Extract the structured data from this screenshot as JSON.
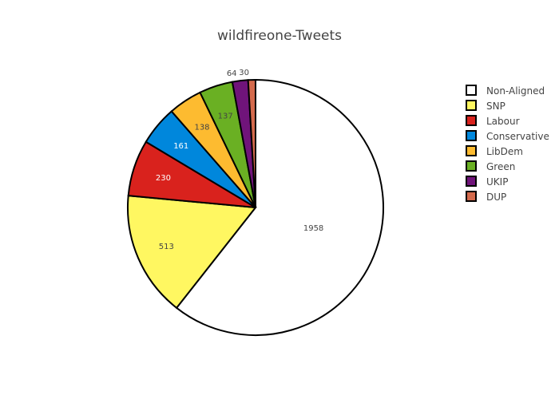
{
  "chart_data": {
    "type": "pie",
    "title": "wildfireone-Tweets",
    "labels": [
      "Non-Aligned",
      "SNP",
      "Labour",
      "Conservative",
      "LibDem",
      "Green",
      "UKIP",
      "DUP"
    ],
    "values": [
      1958,
      513,
      230,
      161,
      138,
      137,
      64,
      30
    ],
    "colors": [
      "#ffffff",
      "#fff761",
      "#d9221d",
      "#0087dc",
      "#fdbb30",
      "#6ab023",
      "#70147a",
      "#d46a4c"
    ],
    "label_colors": [
      "#444444",
      "#444444",
      "#ffffff",
      "#ffffff",
      "#444444",
      "#444444",
      "#ffffff",
      "#444444"
    ],
    "legend_position": "right",
    "direction": "clockwise",
    "start": "top"
  }
}
